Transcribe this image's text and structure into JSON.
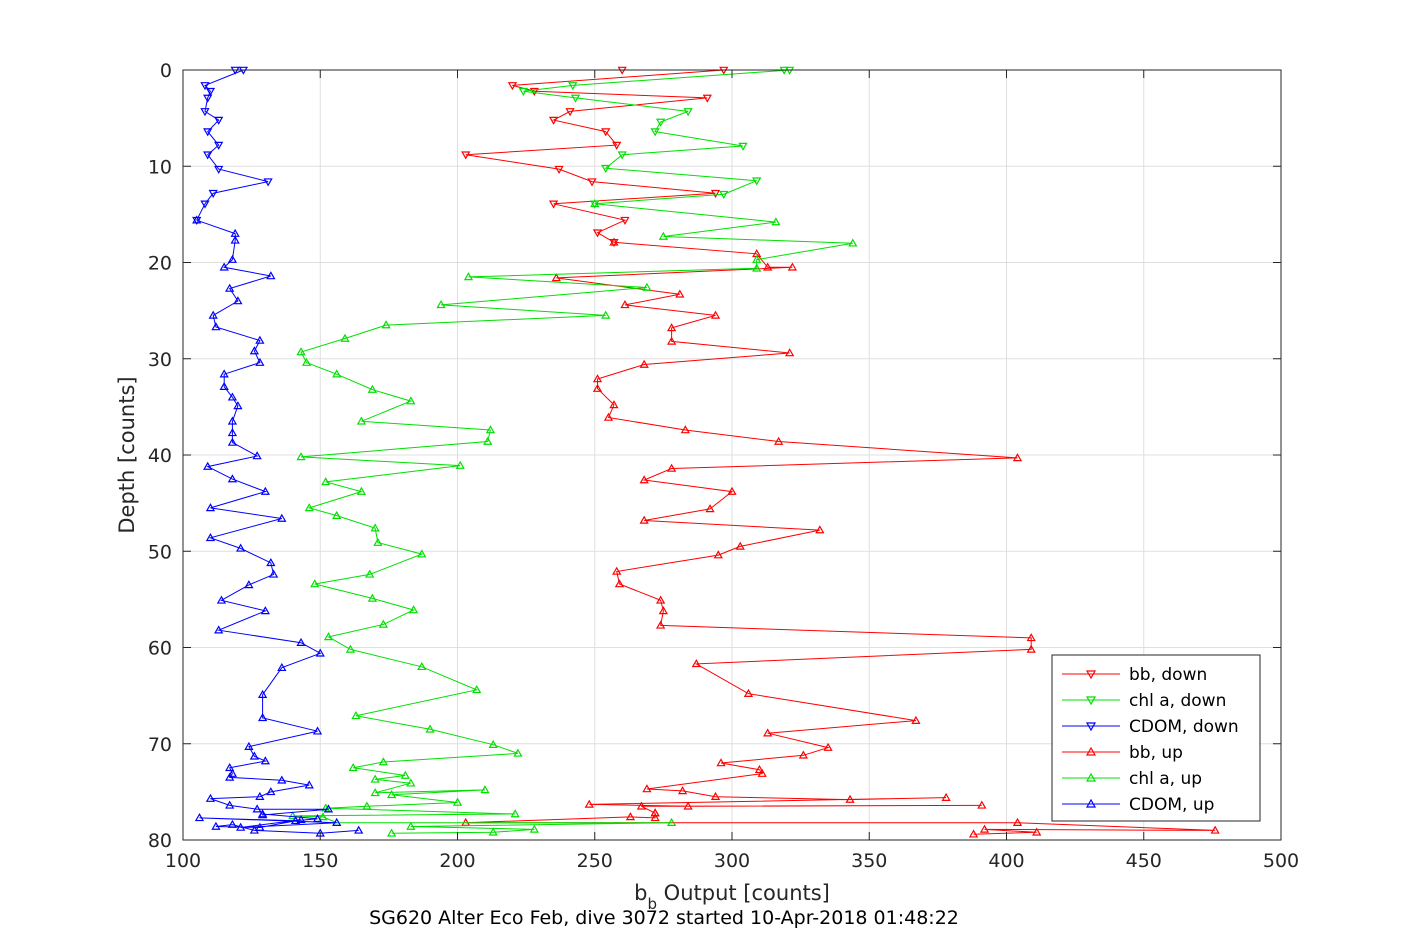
{
  "chart_data": {
    "type": "line",
    "title": "SG620 Alter Eco Feb, dive 3072 started 10-Apr-2018 01:48:22",
    "xlabel_main": "b",
    "xlabel_sub": "b",
    "xlabel_rest": " Output [counts]",
    "ylabel": "Depth [counts]",
    "xlim": [
      100,
      500
    ],
    "ylim": [
      0,
      80
    ],
    "y_reversed": true,
    "grid": true,
    "legend_position": "bottom-right",
    "xticks": [
      "100",
      "150",
      "200",
      "250",
      "300",
      "350",
      "400",
      "450",
      "500"
    ],
    "yticks": [
      "0",
      "10",
      "20",
      "30",
      "40",
      "50",
      "60",
      "70",
      "80"
    ],
    "colors": {
      "bb": "#ff0000",
      "chl": "#00e000",
      "cdom": "#0000ff"
    },
    "series": [
      {
        "name": "bb, down",
        "color": "#ff0000",
        "marker": "triangle-down",
        "x": [
          260,
          297,
          220,
          228,
          291,
          241,
          235,
          254,
          258,
          203,
          237,
          249,
          294,
          235,
          261,
          251,
          257
        ],
        "y": [
          0,
          0,
          1.6,
          2.2,
          2.9,
          4.3,
          5.2,
          6.4,
          7.8,
          8.8,
          10.3,
          11.6,
          12.8,
          13.9,
          15.6,
          16.9,
          17.9
        ]
      },
      {
        "name": "chl a, down",
        "color": "#00e000",
        "marker": "triangle-down",
        "x": [
          319,
          321,
          242,
          224,
          243,
          284,
          274,
          272,
          304,
          260,
          254,
          309,
          297,
          250
        ],
        "y": [
          0,
          0,
          1.6,
          2.2,
          2.9,
          4.3,
          5.4,
          6.4,
          7.9,
          8.8,
          10.2,
          11.5,
          12.9,
          13.9
        ]
      },
      {
        "name": "CDOM, down",
        "color": "#0000ff",
        "marker": "triangle-down",
        "x": [
          119,
          122,
          108,
          110,
          109,
          108,
          113,
          109,
          113,
          109,
          113,
          131,
          111,
          108,
          105
        ],
        "y": [
          0,
          0,
          1.6,
          2.2,
          2.9,
          4.3,
          5.2,
          6.4,
          7.8,
          8.8,
          10.3,
          11.6,
          12.8,
          13.9,
          15.6
        ]
      },
      {
        "name": "bb, up",
        "color": "#ff0000",
        "marker": "triangle-up",
        "x": [
          257,
          309,
          313,
          322,
          236,
          281,
          261,
          294,
          278,
          278,
          321,
          268,
          251,
          251,
          257,
          255,
          283,
          317,
          404,
          278,
          268,
          300,
          292,
          268,
          332,
          303,
          295,
          258,
          259,
          274,
          275,
          274,
          409,
          409,
          287,
          306,
          367,
          313,
          335,
          326,
          296,
          310,
          311,
          269,
          282,
          294,
          343,
          378,
          248,
          284,
          391,
          267,
          272,
          272,
          272,
          263,
          203,
          404,
          476,
          392,
          411,
          388
        ],
        "y": [
          17.9,
          19.1,
          20.5,
          20.5,
          21.6,
          23.3,
          24.4,
          25.5,
          26.8,
          28.2,
          29.4,
          30.6,
          32.1,
          33.1,
          34.8,
          36.1,
          37.4,
          38.6,
          40.3,
          41.4,
          42.6,
          43.8,
          45.6,
          46.8,
          47.8,
          49.5,
          50.4,
          52.1,
          53.4,
          55.1,
          56.2,
          57.7,
          59.0,
          60.2,
          61.7,
          64.8,
          67.6,
          68.9,
          70.4,
          71.2,
          72.0,
          72.7,
          73.1,
          74.7,
          74.9,
          75.5,
          75.8,
          75.6,
          76.3,
          76.5,
          76.4,
          76.5,
          77.2,
          77.2,
          77.7,
          77.6,
          78.2,
          78.2,
          79.0,
          78.9,
          79.2,
          79.4
        ]
      },
      {
        "name": "chl a, up",
        "color": "#00e000",
        "marker": "triangle-up",
        "x": [
          250,
          316,
          275,
          344,
          309,
          309,
          204,
          269,
          194,
          254,
          174,
          159,
          143,
          145,
          156,
          169,
          183,
          165,
          212,
          211,
          143,
          201,
          152,
          165,
          146,
          156,
          170,
          171,
          187,
          168,
          148,
          169,
          184,
          173,
          153,
          161,
          187,
          207,
          163,
          190,
          213,
          222,
          173,
          162,
          181,
          170,
          183,
          170,
          210,
          176,
          200,
          167,
          152,
          221,
          140,
          151,
          156,
          278,
          183,
          228,
          213,
          176
        ],
        "y": [
          13.9,
          15.8,
          17.3,
          18.0,
          19.7,
          20.6,
          21.5,
          22.6,
          24.4,
          25.5,
          26.5,
          27.9,
          29.3,
          30.4,
          31.6,
          33.2,
          34.4,
          36.5,
          37.4,
          38.6,
          40.2,
          41.1,
          42.8,
          43.8,
          45.5,
          46.3,
          47.6,
          49.1,
          50.3,
          52.4,
          53.4,
          54.9,
          56.1,
          57.6,
          58.9,
          60.2,
          62.0,
          64.4,
          67.1,
          68.5,
          70.1,
          71.0,
          71.9,
          72.5,
          73.3,
          73.7,
          74.1,
          75.1,
          74.8,
          75.3,
          76.1,
          76.5,
          76.7,
          77.3,
          77.5,
          77.6,
          78.2,
          78.2,
          78.6,
          78.9,
          79.2,
          79.3
        ]
      },
      {
        "name": "CDOM, up",
        "color": "#0000ff",
        "marker": "triangle-up",
        "x": [
          105,
          119,
          119,
          118,
          115,
          132,
          117,
          120,
          111,
          112,
          128,
          126,
          128,
          115,
          115,
          118,
          120,
          118,
          118,
          118,
          127,
          109,
          118,
          130,
          110,
          136,
          110,
          121,
          132,
          133,
          124,
          114,
          130,
          113,
          143,
          150,
          136,
          129,
          129,
          149,
          124,
          126,
          130,
          117,
          118,
          117,
          136,
          146,
          132,
          128,
          110,
          117,
          127,
          153,
          129,
          129,
          149,
          141,
          106,
          156,
          121,
          143,
          128,
          112,
          118,
          126,
          150,
          164
        ],
        "y": [
          15.6,
          17.0,
          17.7,
          19.7,
          20.5,
          21.4,
          22.7,
          24.0,
          25.5,
          26.7,
          28.1,
          29.2,
          30.4,
          31.6,
          32.9,
          34.0,
          34.9,
          36.5,
          37.7,
          38.7,
          40.1,
          41.2,
          42.5,
          43.8,
          45.5,
          46.6,
          48.6,
          49.7,
          51.2,
          52.4,
          53.5,
          55.1,
          56.2,
          58.2,
          59.5,
          60.6,
          62.1,
          64.9,
          67.3,
          68.7,
          70.3,
          71.3,
          71.8,
          72.5,
          73.1,
          73.5,
          73.8,
          74.3,
          75.0,
          75.5,
          75.7,
          76.4,
          76.8,
          76.8,
          77.4,
          77.3,
          77.8,
          78.0,
          77.7,
          78.2,
          78.7,
          77.9,
          78.7,
          78.6,
          78.4,
          79.0,
          79.3,
          79.0
        ]
      }
    ]
  }
}
